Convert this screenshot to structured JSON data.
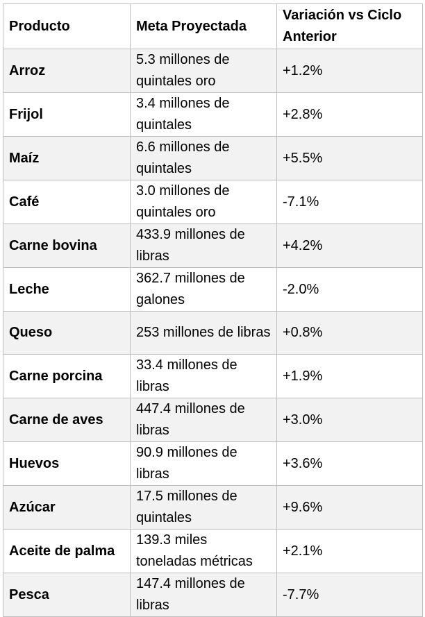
{
  "headers": [
    "Producto",
    "Meta Proyectada",
    "Variación vs Ciclo Anterior"
  ],
  "rows": [
    {
      "product": "Arroz",
      "target": "5.3 millones de quintales oro",
      "change": "+1.2%"
    },
    {
      "product": "Frijol",
      "target": "3.4 millones de quintales",
      "change": "+2.8%"
    },
    {
      "product": "Maíz",
      "target": "6.6 millones de quintales",
      "change": "+5.5%"
    },
    {
      "product": "Café",
      "target": "3.0 millones de quintales oro",
      "change": "-7.1%"
    },
    {
      "product": "Carne bovina",
      "target": "433.9 millones de libras",
      "change": "+4.2%"
    },
    {
      "product": "Leche",
      "target": "362.7 millones de galones",
      "change": "-2.0%"
    },
    {
      "product": "Queso",
      "target": "253 millones de libras",
      "change": "+0.8%"
    },
    {
      "product": "Carne porcina",
      "target": "33.4 millones de libras",
      "change": "+1.9%"
    },
    {
      "product": "Carne de aves",
      "target": "447.4 millones de libras",
      "change": "+3.0%"
    },
    {
      "product": "Huevos",
      "target": "90.9 millones de libras",
      "change": "+3.6%"
    },
    {
      "product": "Azúcar",
      "target": "17.5 millones de quintales",
      "change": "+9.6%"
    },
    {
      "product": "Aceite de palma",
      "target": "139.3 miles toneladas métricas",
      "change": "+2.1%"
    },
    {
      "product": "Pesca",
      "target": "147.4 millones de libras",
      "change": "-7.7%"
    }
  ]
}
